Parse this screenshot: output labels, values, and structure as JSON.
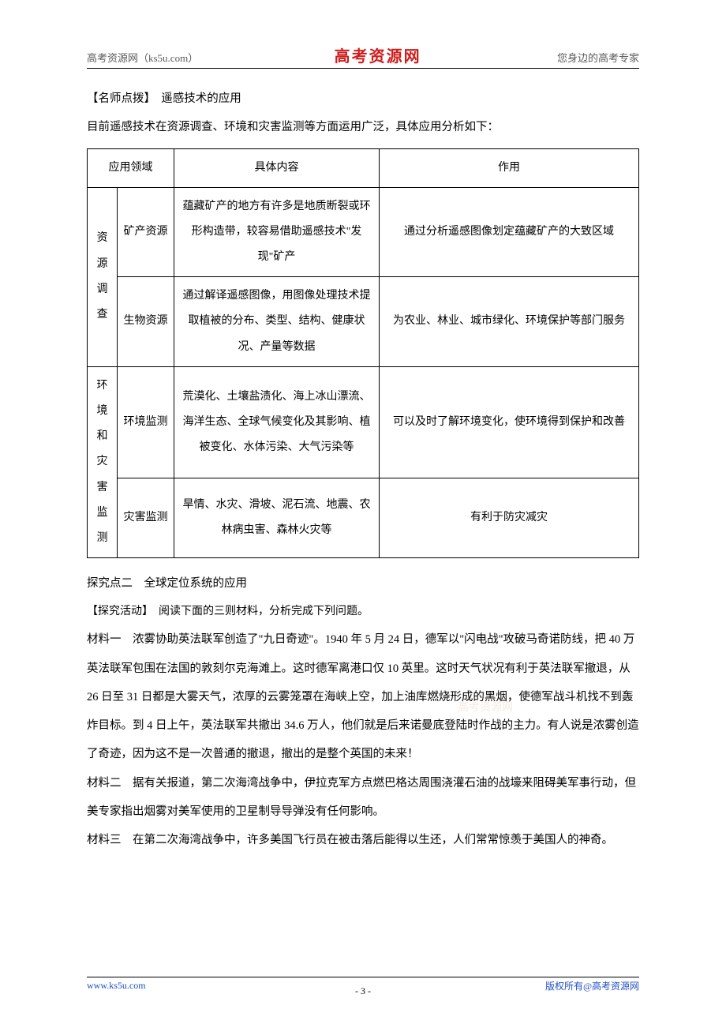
{
  "header": {
    "left": "高考资源网（ks5u.com）",
    "center": "高考资源网",
    "right": "您身边的高考专家"
  },
  "section1": {
    "label": "【名师点拨】　遥感技术的应用",
    "intro": "目前遥感技术在资源调查、环境和灾害监测等方面运用广泛，具体应用分析如下："
  },
  "table": {
    "headers": [
      "应用领域",
      "具体内容",
      "作用"
    ],
    "groups": [
      {
        "area": "资源调查",
        "rows": [
          {
            "sub": "矿产资源",
            "content": "蕴藏矿产的地方有许多是地质断裂或环形构造带，较容易借助遥感技术\"发现\"矿产",
            "effect": "通过分析遥感图像划定蕴藏矿产的大致区域"
          },
          {
            "sub": "生物资源",
            "content": "通过解译遥感图像，用图像处理技术提取植被的分布、类型、结构、健康状况、产量等数据",
            "effect": "为农业、林业、城市绿化、环境保护等部门服务"
          }
        ]
      },
      {
        "area": "环境和灾害监测",
        "rows": [
          {
            "sub": "环境监测",
            "content": "荒漠化、土壤盐渍化、海上冰山漂流、海洋生态、全球气候变化及其影响、植被变化、水体污染、大气污染等",
            "effect": "可以及时了解环境变化，使环境得到保护和改善"
          },
          {
            "sub": "灾害监测",
            "content": "旱情、水灾、滑坡、泥石流、地震、农林病虫害、森林火灾等",
            "effect": "有利于防灾减灾"
          }
        ]
      }
    ]
  },
  "section2": {
    "topic_title": "探究点二　全球定位系统的应用",
    "activity": "【探究活动】　阅读下面的三则材料，分析完成下列问题。",
    "material1": "材料一　浓雾协助英法联军创造了\"九日奇迹\"。1940 年 5 月 24 日，德军以\"闪电战\"攻破马奇诺防线，把 40 万英法联军包围在法国的敦刻尔克海滩上。这时德军离港口仅 10 英里。这时天气状况有利于英法联军撤退，从 26 日至 31 日都是大雾天气，浓厚的云雾笼罩在海峡上空，加上油库燃烧形成的黑烟，使德军战斗机找不到轰炸目标。到 4 日上午，英法联军共撤出 34.6 万人，他们就是后来诺曼底登陆时作战的主力。有人说是浓雾创造了奇迹，因为这不是一次普通的撤退，撤出的是整个英国的未来！",
    "material2": "材料二　据有关报道，第二次海湾战争中，伊拉克军方点燃巴格达周围浇灌石油的战壕来阻碍美军事行动，但美专家指出烟雾对美军使用的卫星制导导弹没有任何影响。",
    "material3": "材料三　在第二次海湾战争中，许多美国飞行员在被击落后能得以生还，人们常常惊羡于美国人的神奇。"
  },
  "footer": {
    "left": "www.ks5u.com",
    "center": "- 3 -",
    "right": "版权所有@高考资源网"
  },
  "watermark": "高考资源网"
}
